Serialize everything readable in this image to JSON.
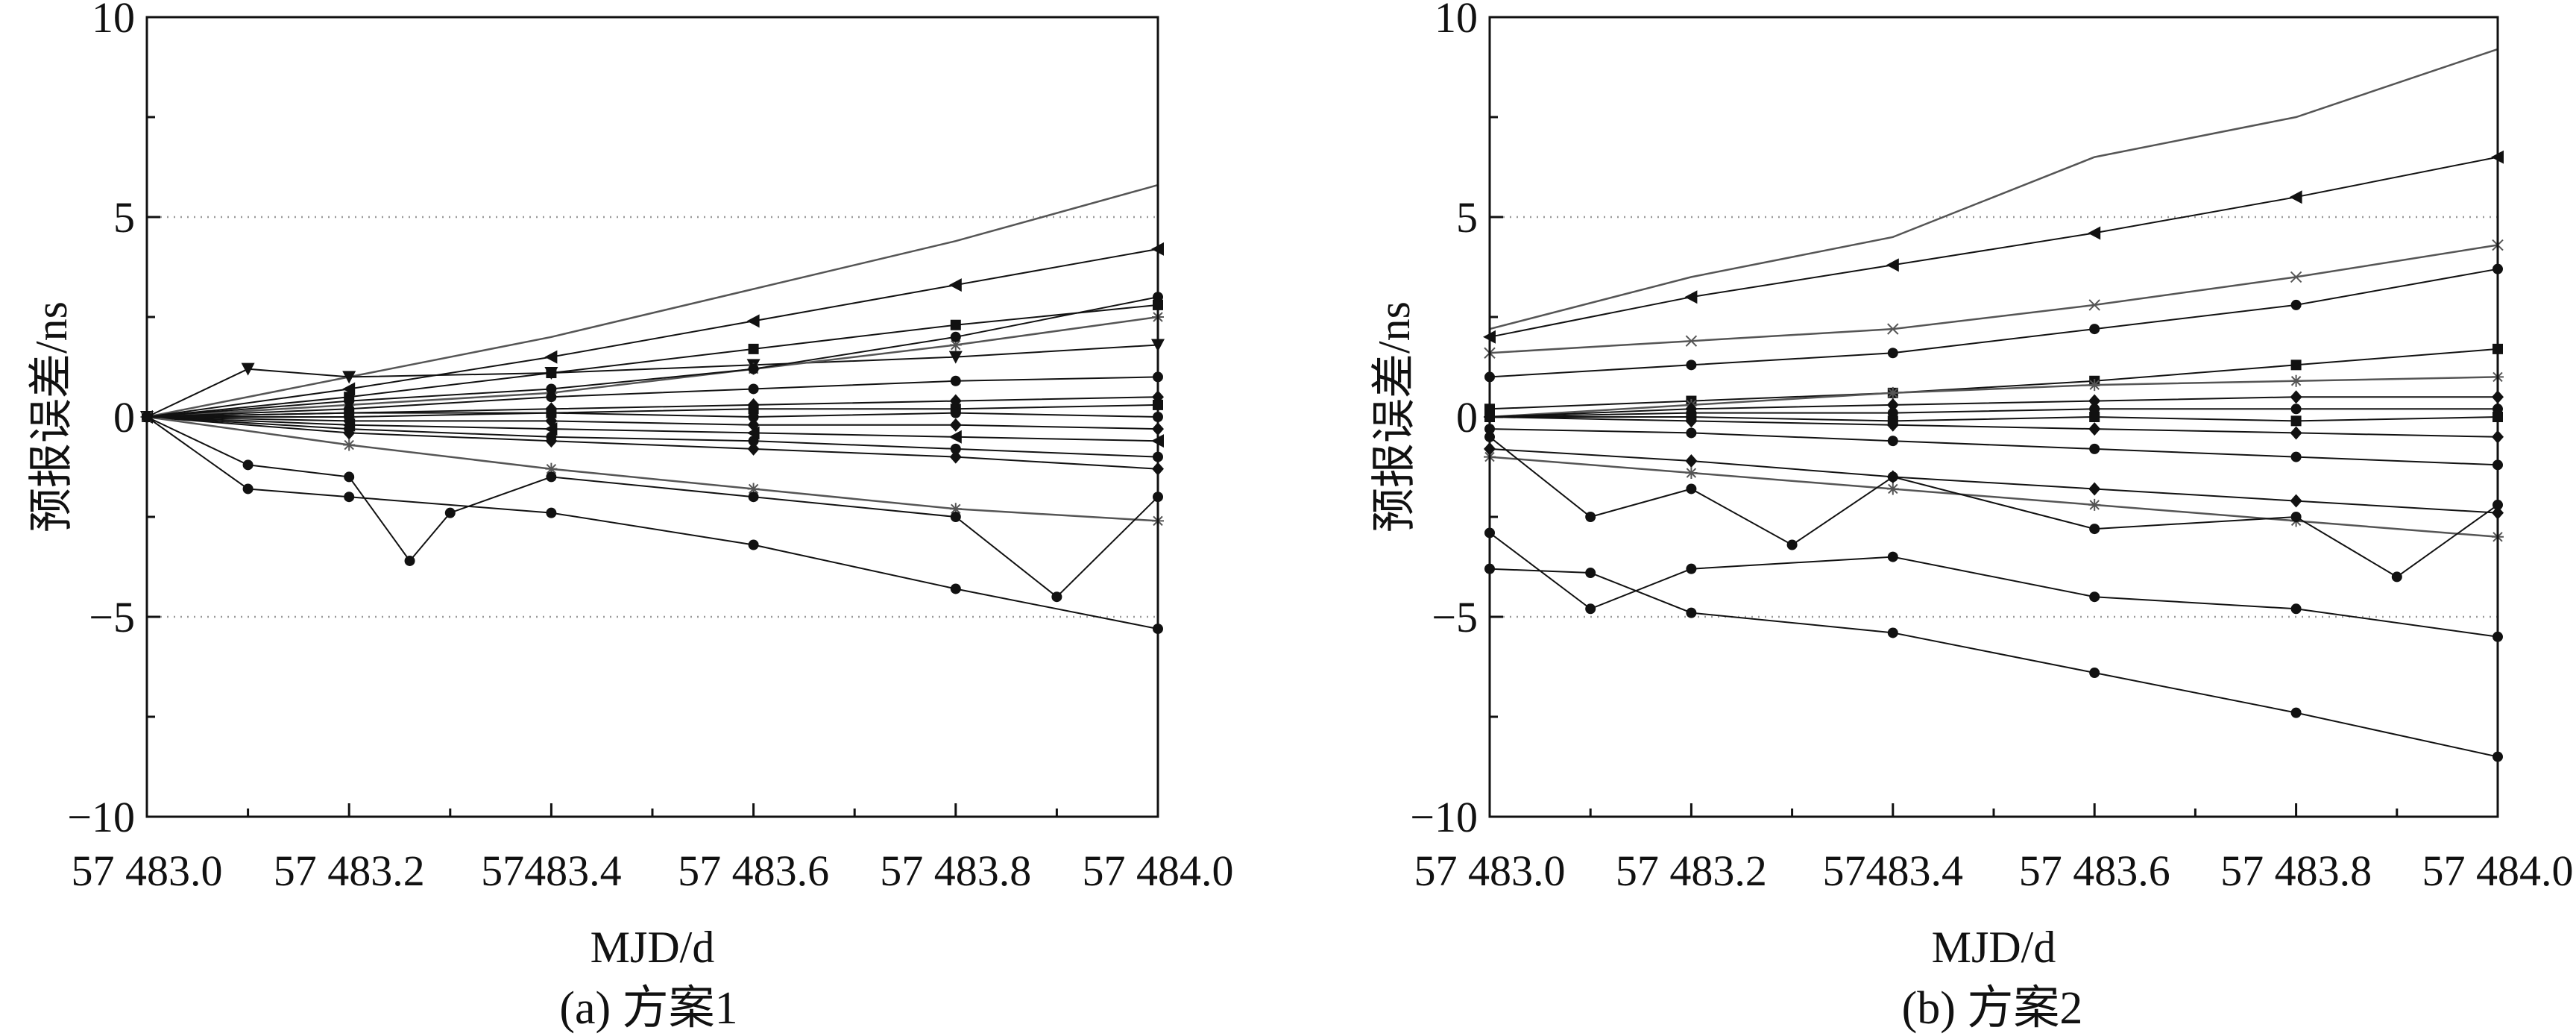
{
  "chart_data": [
    {
      "type": "line",
      "caption": "(a) 方案1",
      "xlabel": "MJD/d",
      "ylabel": "预报误差/ns",
      "xlim": [
        57483.0,
        57484.0
      ],
      "ylim": [
        -10,
        10
      ],
      "x_ticks": [
        57483.0,
        57483.2,
        57483.4,
        57483.6,
        57483.8,
        57484.0
      ],
      "x_tick_labels": [
        "57 483.0",
        "57 483.2",
        "57483.4",
        "57 483.6",
        "57 483.8",
        "57 484.0"
      ],
      "y_ticks": [
        -10,
        -5,
        0,
        5,
        10
      ],
      "y_tick_labels": [
        "−10",
        "−5",
        "0",
        "5",
        "10"
      ],
      "grid": {
        "horizontal_dotted_at": [
          -5,
          5
        ]
      },
      "color": "#111111",
      "series": [
        {
          "marker": "none",
          "x": [
            57483.0,
            57483.2,
            57483.4,
            57483.6,
            57483.8,
            57484.0
          ],
          "y": [
            0.0,
            1.0,
            2.0,
            3.2,
            4.4,
            5.8
          ]
        },
        {
          "marker": "triangle-left",
          "x": [
            57483.0,
            57483.2,
            57483.4,
            57483.6,
            57483.8,
            57484.0
          ],
          "y": [
            0.0,
            0.7,
            1.5,
            2.4,
            3.3,
            4.2
          ]
        },
        {
          "marker": "square",
          "x": [
            57483.0,
            57483.2,
            57483.4,
            57483.6,
            57483.8,
            57484.0
          ],
          "y": [
            0.0,
            0.5,
            1.1,
            1.7,
            2.3,
            2.8
          ]
        },
        {
          "marker": "triangle-down",
          "x": [
            57483.0,
            57483.1,
            57483.2,
            57483.4,
            57483.6,
            57483.8,
            57484.0
          ],
          "y": [
            0.0,
            1.2,
            1.0,
            1.1,
            1.3,
            1.5,
            1.8
          ]
        },
        {
          "marker": "star",
          "x": [
            57483.0,
            57483.2,
            57483.4,
            57483.6,
            57483.8,
            57484.0
          ],
          "y": [
            0.0,
            0.3,
            0.6,
            1.2,
            1.8,
            2.5
          ]
        },
        {
          "marker": "circle",
          "x": [
            57483.0,
            57483.2,
            57483.4,
            57483.6,
            57483.8,
            57484.0
          ],
          "y": [
            0.0,
            0.2,
            0.5,
            0.7,
            0.9,
            1.0
          ]
        },
        {
          "marker": "diamond",
          "x": [
            57483.0,
            57483.2,
            57483.4,
            57483.6,
            57483.8,
            57484.0
          ],
          "y": [
            0.0,
            0.1,
            0.2,
            0.3,
            0.4,
            0.5
          ]
        },
        {
          "marker": "square",
          "x": [
            57483.0,
            57483.2,
            57483.4,
            57483.6,
            57483.8,
            57484.0
          ],
          "y": [
            0.0,
            0.1,
            0.1,
            0.2,
            0.2,
            0.3
          ]
        },
        {
          "marker": "circle",
          "x": [
            57483.0,
            57483.2,
            57483.4,
            57483.6,
            57483.8,
            57484.0
          ],
          "y": [
            0.0,
            0.0,
            0.1,
            0.0,
            0.1,
            0.0
          ]
        },
        {
          "marker": "diamond",
          "x": [
            57483.0,
            57483.2,
            57483.4,
            57483.6,
            57483.8,
            57484.0
          ],
          "y": [
            0.0,
            -0.1,
            -0.1,
            -0.2,
            -0.2,
            -0.3
          ]
        },
        {
          "marker": "triangle-left",
          "x": [
            57483.0,
            57483.2,
            57483.4,
            57483.6,
            57483.8,
            57484.0
          ],
          "y": [
            0.0,
            -0.2,
            -0.3,
            -0.4,
            -0.5,
            -0.6
          ]
        },
        {
          "marker": "circle",
          "x": [
            57483.0,
            57483.2,
            57483.4,
            57483.6,
            57483.8,
            57484.0
          ],
          "y": [
            0.0,
            -0.3,
            -0.5,
            -0.6,
            -0.8,
            -1.0
          ]
        },
        {
          "marker": "diamond",
          "x": [
            57483.0,
            57483.2,
            57483.4,
            57483.6,
            57483.8,
            57484.0
          ],
          "y": [
            0.0,
            -0.4,
            -0.6,
            -0.8,
            -1.0,
            -1.3
          ]
        },
        {
          "marker": "star",
          "x": [
            57483.0,
            57483.2,
            57483.4,
            57483.6,
            57483.8,
            57484.0
          ],
          "y": [
            0.0,
            -0.7,
            -1.3,
            -1.8,
            -2.3,
            -2.6
          ]
        },
        {
          "marker": "circle",
          "x": [
            57483.0,
            57483.1,
            57483.2,
            57483.26,
            57483.3,
            57483.4,
            57483.6,
            57483.8,
            57483.9,
            57484.0
          ],
          "y": [
            0.0,
            -1.2,
            -1.5,
            -3.6,
            -2.4,
            -1.5,
            -2.0,
            -2.5,
            -4.5,
            -2.0
          ]
        },
        {
          "marker": "circle",
          "x": [
            57483.0,
            57483.1,
            57483.2,
            57483.4,
            57483.6,
            57483.8,
            57484.0
          ],
          "y": [
            0.0,
            -1.8,
            -2.0,
            -2.4,
            -3.2,
            -4.3,
            -5.3
          ]
        },
        {
          "marker": "circle",
          "x": [
            57483.0,
            57483.2,
            57483.4,
            57483.6,
            57483.8,
            57484.0
          ],
          "y": [
            0.0,
            0.4,
            0.7,
            1.2,
            2.0,
            3.0
          ]
        }
      ]
    },
    {
      "type": "line",
      "caption": "(b) 方案2",
      "xlabel": "MJD/d",
      "ylabel": "预报误差/ns",
      "xlim": [
        57483.0,
        57484.0
      ],
      "ylim": [
        -10,
        10
      ],
      "x_ticks": [
        57483.0,
        57483.2,
        57483.4,
        57483.6,
        57483.8,
        57484.0
      ],
      "x_tick_labels": [
        "57 483.0",
        "57 483.2",
        "57483.4",
        "57 483.6",
        "57 483.8",
        "57 484.0"
      ],
      "y_ticks": [
        -10,
        -5,
        0,
        5,
        10
      ],
      "y_tick_labels": [
        "−10",
        "−5",
        "0",
        "5",
        "10"
      ],
      "grid": {
        "horizontal_dotted_at": [
          -5,
          5
        ]
      },
      "color": "#111111",
      "series": [
        {
          "marker": "none",
          "x": [
            57483.0,
            57483.2,
            57483.4,
            57483.6,
            57483.8,
            57484.0
          ],
          "y": [
            2.2,
            3.5,
            4.5,
            6.5,
            7.5,
            9.2
          ]
        },
        {
          "marker": "triangle-left",
          "x": [
            57483.0,
            57483.2,
            57483.4,
            57483.6,
            57483.8,
            57484.0
          ],
          "y": [
            2.0,
            3.0,
            3.8,
            4.6,
            5.5,
            6.5
          ]
        },
        {
          "marker": "x",
          "x": [
            57483.0,
            57483.2,
            57483.4,
            57483.6,
            57483.8,
            57484.0
          ],
          "y": [
            1.6,
            1.9,
            2.2,
            2.8,
            3.5,
            4.3
          ]
        },
        {
          "marker": "circle",
          "x": [
            57483.0,
            57483.2,
            57483.4,
            57483.6,
            57483.8,
            57484.0
          ],
          "y": [
            1.0,
            1.3,
            1.6,
            2.2,
            2.8,
            3.7
          ]
        },
        {
          "marker": "square",
          "x": [
            57483.0,
            57483.2,
            57483.4,
            57483.6,
            57483.8,
            57484.0
          ],
          "y": [
            0.2,
            0.4,
            0.6,
            0.9,
            1.3,
            1.7
          ]
        },
        {
          "marker": "star",
          "x": [
            57483.0,
            57483.2,
            57483.4,
            57483.6,
            57483.8,
            57484.0
          ],
          "y": [
            0.0,
            0.3,
            0.6,
            0.8,
            0.9,
            1.0
          ]
        },
        {
          "marker": "diamond",
          "x": [
            57483.0,
            57483.2,
            57483.4,
            57483.6,
            57483.8,
            57484.0
          ],
          "y": [
            0.0,
            0.2,
            0.3,
            0.4,
            0.5,
            0.5
          ]
        },
        {
          "marker": "circle",
          "x": [
            57483.0,
            57483.2,
            57483.4,
            57483.6,
            57483.8,
            57484.0
          ],
          "y": [
            0.0,
            0.1,
            0.1,
            0.2,
            0.2,
            0.2
          ]
        },
        {
          "marker": "square",
          "x": [
            57483.0,
            57483.2,
            57483.4,
            57483.6,
            57483.8,
            57484.0
          ],
          "y": [
            0.0,
            0.0,
            -0.1,
            0.0,
            -0.1,
            0.0
          ]
        },
        {
          "marker": "diamond",
          "x": [
            57483.0,
            57483.2,
            57483.4,
            57483.6,
            57483.8,
            57484.0
          ],
          "y": [
            0.0,
            -0.1,
            -0.2,
            -0.3,
            -0.4,
            -0.5
          ]
        },
        {
          "marker": "circle",
          "x": [
            57483.0,
            57483.2,
            57483.4,
            57483.6,
            57483.8,
            57484.0
          ],
          "y": [
            -0.3,
            -0.4,
            -0.6,
            -0.8,
            -1.0,
            -1.2
          ]
        },
        {
          "marker": "diamond",
          "x": [
            57483.0,
            57483.2,
            57483.4,
            57483.6,
            57483.8,
            57484.0
          ],
          "y": [
            -0.8,
            -1.1,
            -1.5,
            -1.8,
            -2.1,
            -2.4
          ]
        },
        {
          "marker": "star",
          "x": [
            57483.0,
            57483.2,
            57483.4,
            57483.6,
            57483.8,
            57484.0
          ],
          "y": [
            -1.0,
            -1.4,
            -1.8,
            -2.2,
            -2.6,
            -3.0
          ]
        },
        {
          "marker": "circle",
          "x": [
            57483.0,
            57483.1,
            57483.2,
            57483.3,
            57483.4,
            57483.6,
            57483.8,
            57483.9,
            57484.0
          ],
          "y": [
            -0.5,
            -2.5,
            -1.8,
            -3.2,
            -1.5,
            -2.8,
            -2.5,
            -4.0,
            -2.2
          ]
        },
        {
          "marker": "circle",
          "x": [
            57483.0,
            57483.1,
            57483.2,
            57483.4,
            57483.6,
            57483.8,
            57484.0
          ],
          "y": [
            -2.9,
            -4.8,
            -3.8,
            -3.5,
            -4.5,
            -4.8,
            -5.5
          ]
        },
        {
          "marker": "circle",
          "x": [
            57483.0,
            57483.1,
            57483.2,
            57483.4,
            57483.6,
            57483.8,
            57484.0
          ],
          "y": [
            -3.8,
            -3.9,
            -4.9,
            -5.4,
            -6.4,
            -7.4,
            -8.5
          ]
        }
      ]
    }
  ]
}
